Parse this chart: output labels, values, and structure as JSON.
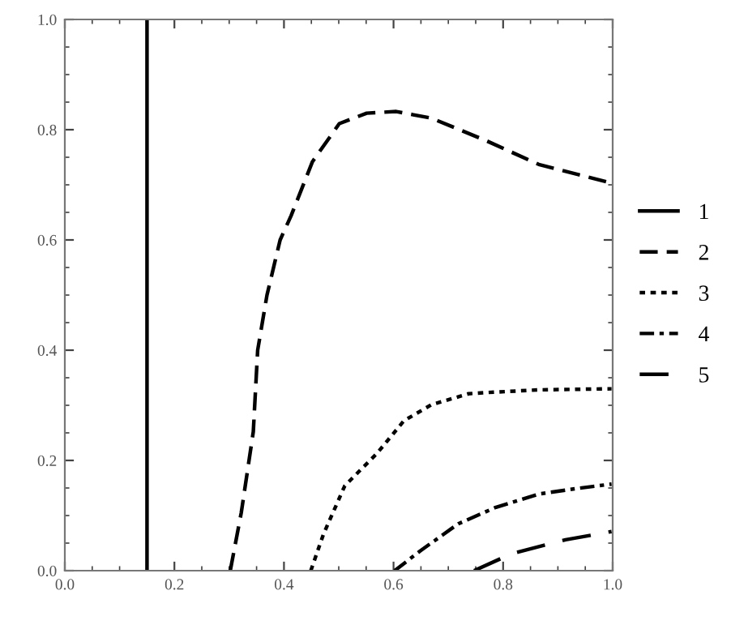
{
  "chart_data": {
    "type": "line",
    "xlim": [
      0,
      1
    ],
    "ylim": [
      0,
      1
    ],
    "xticks": [
      {
        "value": 0,
        "label": "0.0"
      },
      {
        "value": 0.2,
        "label": "0.2"
      },
      {
        "value": 0.4,
        "label": "0.4"
      },
      {
        "value": 0.6,
        "label": "0.6"
      },
      {
        "value": 0.8,
        "label": "0.8"
      },
      {
        "value": 1,
        "label": "1.0"
      }
    ],
    "yticks": [
      {
        "value": 0,
        "label": "0.0"
      },
      {
        "value": 0.2,
        "label": "0.2"
      },
      {
        "value": 0.4,
        "label": "0.4"
      },
      {
        "value": 0.6,
        "label": "0.6"
      },
      {
        "value": 0.8,
        "label": "0.8"
      },
      {
        "value": 1,
        "label": "1.0"
      }
    ],
    "grid": false,
    "legend": "right",
    "marker": "none",
    "series": [
      {
        "name": "1",
        "color": "#000000",
        "line_style": "solid",
        "x": [
          0.15,
          0.15
        ],
        "values": [
          0,
          1
        ]
      },
      {
        "name": "2",
        "color": "#000000",
        "line_style": "dashed",
        "x": [
          0.302,
          0.322,
          0.344,
          0.352,
          0.369,
          0.393,
          0.413,
          0.452,
          0.501,
          0.551,
          0.605,
          0.669,
          0.767,
          0.865,
          0.998
        ],
        "values": [
          0,
          0.105,
          0.252,
          0.4,
          0.5,
          0.6,
          0.644,
          0.742,
          0.811,
          0.83,
          0.833,
          0.821,
          0.781,
          0.737,
          0.703
        ]
      },
      {
        "name": "3",
        "color": "#000000",
        "line_style": "dotted",
        "x": [
          0.449,
          0.472,
          0.511,
          0.57,
          0.619,
          0.669,
          0.737,
          0.767,
          0.865,
          0.998
        ],
        "values": [
          0,
          0.066,
          0.154,
          0.213,
          0.272,
          0.301,
          0.321,
          0.323,
          0.328,
          0.33
        ]
      },
      {
        "name": "4",
        "color": "#000000",
        "line_style": "dashdot",
        "x": [
          0.602,
          0.649,
          0.718,
          0.787,
          0.865,
          0.934,
          0.998
        ],
        "values": [
          0,
          0.036,
          0.085,
          0.115,
          0.139,
          0.149,
          0.157
        ]
      },
      {
        "name": "5",
        "color": "#000000",
        "line_style": "longdash",
        "x": [
          0.747,
          0.816,
          0.914,
          0.998
        ],
        "values": [
          0,
          0.031,
          0.056,
          0.071
        ]
      }
    ]
  }
}
